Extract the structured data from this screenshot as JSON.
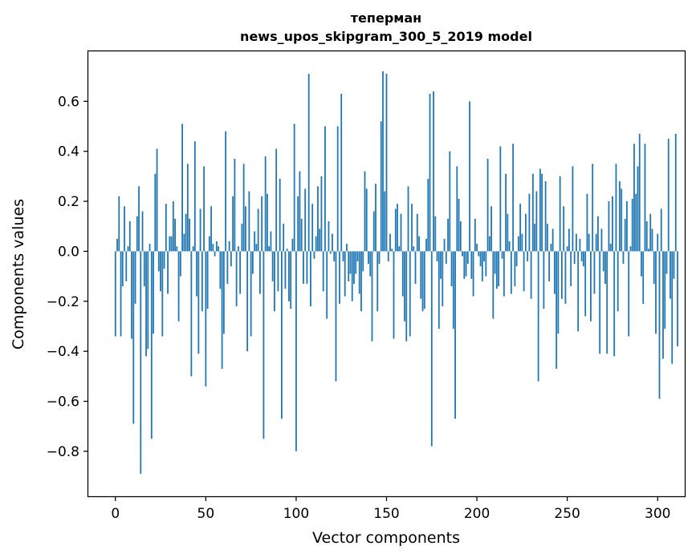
{
  "chart_data": {
    "type": "bar",
    "title_line1": "теперман",
    "title_line2": "news_upos_skipgram_300_5_2019 model",
    "xlabel": "Vector components",
    "ylabel": "Components values",
    "xlim": [
      -15,
      315
    ],
    "ylim": [
      -0.98,
      0.8
    ],
    "xticks": [
      0,
      50,
      100,
      150,
      200,
      250,
      300
    ],
    "yticks": [
      -0.8,
      -0.6,
      -0.4,
      -0.2,
      0.0,
      0.2,
      0.4,
      0.6
    ],
    "ytick_labels": [
      "−0.8",
      "−0.6",
      "−0.4",
      "−0.2",
      "0.0",
      "0.2",
      "0.4",
      "0.6"
    ],
    "bar_color": "#1f77b4",
    "grid": false,
    "values": [
      -0.34,
      0.05,
      0.22,
      -0.34,
      -0.14,
      0.18,
      -0.12,
      0.02,
      0.12,
      -0.35,
      -0.69,
      -0.21,
      0.14,
      0.26,
      -0.89,
      0.16,
      -0.14,
      -0.42,
      -0.39,
      0.03,
      -0.75,
      -0.33,
      0.31,
      0.41,
      -0.08,
      -0.16,
      -0.34,
      -0.07,
      0.19,
      -0.17,
      0.06,
      0.06,
      0.2,
      0.13,
      0.02,
      -0.28,
      -0.1,
      0.51,
      0.07,
      0.15,
      0.35,
      0.13,
      -0.5,
      0.02,
      0.44,
      -0.18,
      -0.41,
      0.17,
      -0.24,
      0.34,
      -0.54,
      -0.23,
      0.06,
      0.18,
      0.03,
      -0.02,
      0.04,
      0.02,
      -0.15,
      -0.47,
      -0.33,
      0.48,
      -0.13,
      0.04,
      -0.06,
      0.22,
      0.37,
      -0.22,
      0.02,
      -0.17,
      0.11,
      0.35,
      0.18,
      -0.4,
      0.24,
      -0.34,
      -0.09,
      0.08,
      0.03,
      0.17,
      -0.17,
      0.22,
      -0.75,
      0.38,
      0.23,
      0.02,
      0.08,
      -0.12,
      -0.24,
      0.41,
      -0.16,
      0.29,
      -0.67,
      0.11,
      -0.15,
      0.01,
      -0.2,
      -0.23,
      0.05,
      0.51,
      -0.8,
      0.22,
      0.32,
      0.13,
      -0.13,
      0.25,
      -0.13,
      0.71,
      -0.22,
      0.19,
      -0.03,
      0.06,
      0.26,
      0.09,
      0.3,
      -0.16,
      0.5,
      -0.27,
      0.12,
      -0.01,
      0.07,
      -0.04,
      -0.52,
      0.5,
      -0.21,
      0.63,
      -0.04,
      -0.18,
      0.03,
      -0.12,
      -0.09,
      -0.2,
      -0.13,
      -0.09,
      -0.04,
      -0.17,
      -0.24,
      -0.08,
      0.32,
      0.25,
      -0.05,
      -0.1,
      -0.36,
      0.16,
      0.27,
      -0.24,
      -0.05,
      0.52,
      0.72,
      0.24,
      0.71,
      -0.04,
      0.07,
      0.01,
      -0.35,
      0.17,
      0.19,
      0.02,
      0.15,
      -0.18,
      -0.28,
      -0.36,
      0.26,
      -0.34,
      0.19,
      0.02,
      -0.13,
      0.15,
      0.06,
      -0.19,
      -0.24,
      -0.23,
      0.05,
      0.29,
      0.63,
      -0.78,
      0.64,
      0.14,
      -0.04,
      -0.31,
      -0.11,
      -0.22,
      0.05,
      -0.05,
      0.13,
      0.4,
      -0.14,
      -0.31,
      -0.67,
      0.34,
      0.21,
      0.12,
      -0.02,
      -0.11,
      -0.1,
      -0.05,
      0.6,
      -0.11,
      -0.18,
      0.13,
      0.03,
      -0.02,
      -0.06,
      -0.12,
      -0.04,
      -0.1,
      0.37,
      0.06,
      0.18,
      -0.27,
      -0.09,
      -0.15,
      -0.14,
      0.42,
      -0.03,
      -0.18,
      0.31,
      0.15,
      0.04,
      -0.17,
      0.43,
      -0.14,
      -0.06,
      0.06,
      0.19,
      0.07,
      -0.16,
      0.15,
      -0.04,
      0.23,
      -0.19,
      0.31,
      0.11,
      0.24,
      -0.52,
      0.33,
      0.31,
      -0.23,
      0.28,
      0.11,
      -0.12,
      0.03,
      0.09,
      -0.17,
      -0.47,
      -0.33,
      0.3,
      -0.19,
      0.18,
      -0.21,
      0.02,
      0.09,
      -0.14,
      0.34,
      -0.05,
      0.07,
      -0.32,
      0.05,
      -0.04,
      -0.06,
      -0.26,
      0.23,
      0.07,
      -0.28,
      0.35,
      -0.17,
      0.07,
      0.14,
      -0.41,
      0.09,
      -0.08,
      -0.13,
      -0.41,
      0.2,
      0.03,
      0.22,
      -0.42,
      0.35,
      -0.24,
      0.28,
      0.25,
      -0.05,
      0.13,
      0.2,
      -0.34,
      0.02,
      0.21,
      0.43,
      0.23,
      0.34,
      0.47,
      -0.1,
      -0.21,
      0.43,
      0.12,
      0.01,
      0.15,
      0.09,
      -0.13,
      -0.33,
      0.07,
      -0.59,
      0.17,
      -0.43,
      -0.31,
      -0.09,
      0.45,
      -0.19,
      -0.45,
      -0.11,
      0.47,
      -0.38
    ]
  }
}
